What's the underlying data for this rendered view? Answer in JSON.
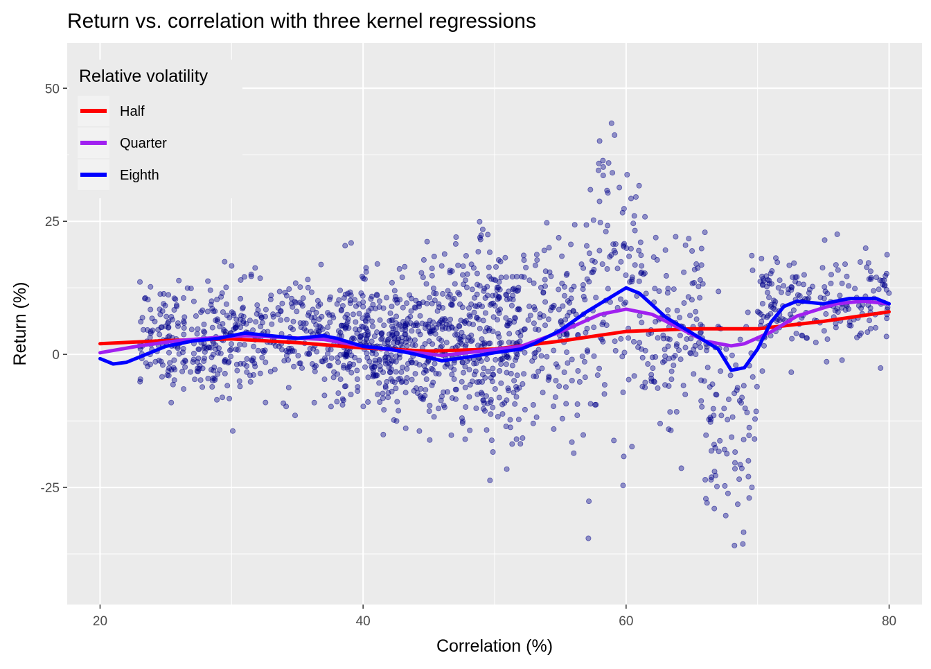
{
  "chart_data": {
    "type": "scatter",
    "title": "Return vs. correlation with three kernel regressions",
    "xlabel": "Correlation (%)",
    "ylabel": "Return (%)",
    "xlim": [
      17.5,
      82.5
    ],
    "ylim": [
      -47,
      58.5
    ],
    "x_ticks": [
      20,
      40,
      60,
      80
    ],
    "y_ticks": [
      -25,
      0,
      25,
      50
    ],
    "grid": true,
    "legend": {
      "title": "Relative volatility",
      "position": "top-left inside",
      "entries": [
        "Half",
        "Quarter",
        "Eighth"
      ]
    },
    "points_color": "#00008B",
    "points_note": "Approximately 2000 semi-transparent scatter points; only representative clusters shown.",
    "point_clusters": [
      {
        "x_range": [
          23,
          30
        ],
        "y_mean": 3,
        "y_sd": 5,
        "n": 220
      },
      {
        "x_range": [
          30,
          38
        ],
        "y_mean": 3,
        "y_sd": 5,
        "n": 220
      },
      {
        "x_range": [
          38,
          44
        ],
        "y_mean": 2,
        "y_sd": 6,
        "n": 330
      },
      {
        "x_range": [
          44,
          52
        ],
        "y_mean": 2,
        "y_sd": 9,
        "n": 430
      },
      {
        "x_range": [
          52,
          57
        ],
        "y_mean": 5,
        "y_sd": 9,
        "n": 140
      },
      {
        "x_range": [
          57,
          61
        ],
        "y_mean": 12,
        "y_sd": 14,
        "n": 110
      },
      {
        "x_range": [
          61,
          66
        ],
        "y_mean": 5,
        "y_sd": 9,
        "n": 130
      },
      {
        "x_range": [
          66,
          70
        ],
        "y_mean": -10,
        "y_sd": 11,
        "n": 90
      },
      {
        "x_range": [
          70,
          80
        ],
        "y_mean": 9,
        "y_sd": 5,
        "n": 200
      }
    ],
    "series": [
      {
        "name": "Half",
        "color": "#FF0000",
        "x": [
          20,
          25,
          30,
          35,
          40,
          45,
          50,
          55,
          60,
          65,
          70,
          75,
          80
        ],
        "values": [
          2,
          2.6,
          2.9,
          2.2,
          1.2,
          0.6,
          1,
          2.5,
          4.3,
          4.8,
          4.8,
          6.2,
          8
        ]
      },
      {
        "name": "Quarter",
        "color": "#A020F0",
        "x": [
          20,
          23,
          26,
          29,
          31,
          34,
          37,
          40,
          43,
          46,
          49,
          52,
          55,
          58,
          60,
          62,
          64,
          66,
          68,
          69,
          71,
          73,
          76,
          78,
          80
        ],
        "values": [
          0.3,
          1.6,
          2.6,
          3.2,
          3.5,
          3.2,
          2.8,
          1.5,
          0.6,
          -0.2,
          0.6,
          1.5,
          4.2,
          7.5,
          8.5,
          7.5,
          5,
          2.5,
          1.6,
          2,
          4.2,
          7.2,
          9.5,
          10,
          9.5
        ]
      },
      {
        "name": "Eighth",
        "color": "#0000FF",
        "x": [
          20,
          21,
          22,
          23,
          25,
          27,
          29,
          31,
          33,
          35,
          37,
          38,
          40,
          42,
          44,
          46,
          48,
          50,
          52,
          53,
          55,
          57,
          59,
          60,
          61,
          63,
          65,
          67,
          68,
          69,
          70,
          71,
          72,
          73,
          75,
          77,
          79,
          80
        ],
        "values": [
          -0.8,
          -1.8,
          -1.5,
          -0.5,
          1.5,
          2.5,
          3,
          4,
          3.5,
          3,
          3.5,
          3,
          1.5,
          1,
          0,
          -1.2,
          -0.5,
          0.3,
          1,
          2,
          4.5,
          8,
          11,
          12.5,
          11.5,
          7,
          4,
          1,
          -3,
          -2.5,
          1,
          6,
          9,
          10,
          9.5,
          10.5,
          10.5,
          9.5
        ]
      }
    ]
  }
}
